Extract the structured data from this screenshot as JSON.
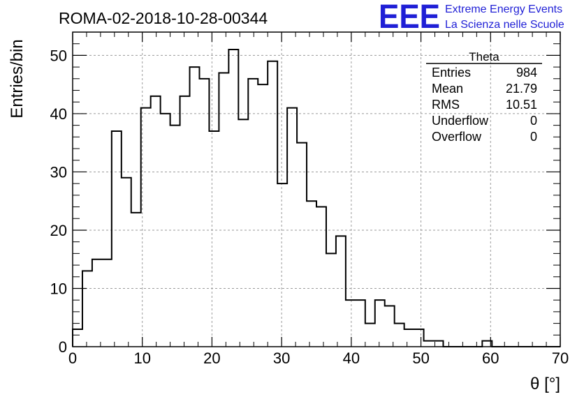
{
  "chart_data": {
    "type": "bar",
    "title": "ROMA-02-2018-10-28-00344",
    "xlabel": "θ [°]",
    "ylabel": "Entries/bin",
    "xlim": [
      0,
      70
    ],
    "ylim": [
      0,
      54
    ],
    "x_ticks": [
      "0",
      "10",
      "20",
      "30",
      "40",
      "50",
      "60",
      "70"
    ],
    "y_ticks": [
      "0",
      "10",
      "20",
      "30",
      "40",
      "50"
    ],
    "grid": true,
    "bin_width": 1.4,
    "bin_start": 0,
    "values": [
      3,
      13,
      15,
      15,
      37,
      29,
      23,
      41,
      43,
      40,
      38,
      43,
      48,
      46,
      37,
      47,
      51,
      39,
      46,
      45,
      49,
      28,
      41,
      35,
      25,
      24,
      16,
      19,
      8,
      8,
      4,
      8,
      7,
      4,
      3,
      3,
      1,
      1,
      0,
      0,
      0,
      0,
      1,
      0,
      0,
      0,
      0,
      0,
      0,
      0
    ],
    "stats_box": {
      "title": "Theta",
      "rows": [
        {
          "label": "Entries",
          "value": "984"
        },
        {
          "label": "Mean",
          "value": "21.79"
        },
        {
          "label": "RMS",
          "value": "10.51"
        },
        {
          "label": "Underflow",
          "value": "0"
        },
        {
          "label": "Overflow",
          "value": "0"
        }
      ]
    }
  },
  "logo": {
    "text": "EEE",
    "line1": "Extreme Energy Events",
    "line2": "La Scienza nelle Scuole",
    "color": "#1f1fd6"
  }
}
